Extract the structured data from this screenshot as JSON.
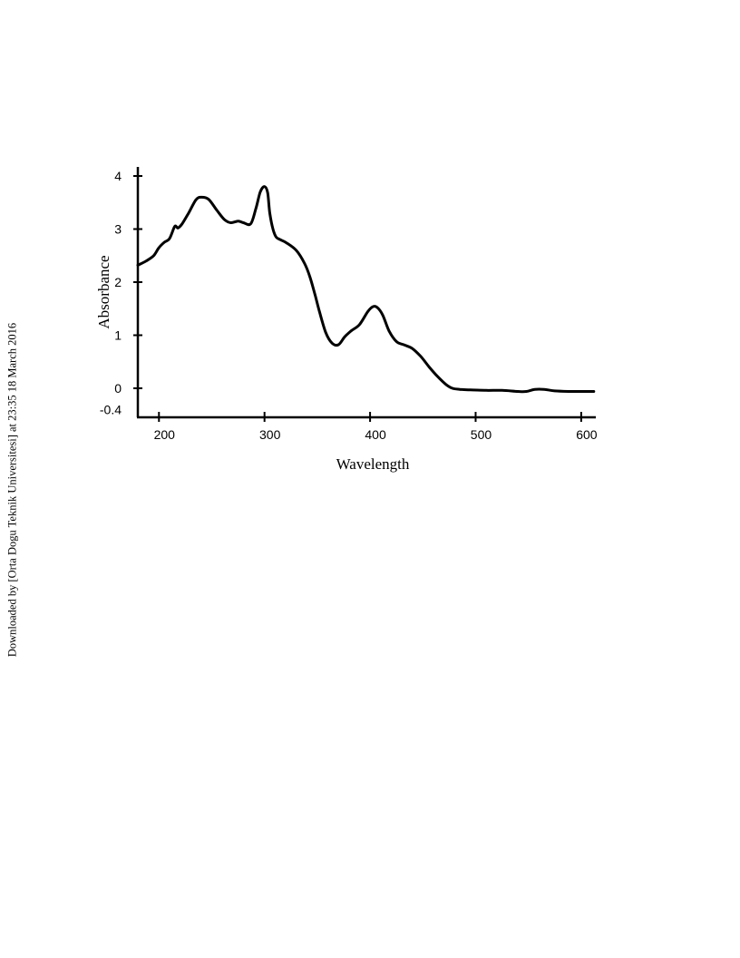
{
  "watermark": "Downloaded by [Orta Dogu Teknik Universitesi] at 23:35 18 March 2016",
  "chart_data": {
    "type": "line",
    "title": "",
    "xlabel": "Wavelength",
    "ylabel": "Absorbance",
    "xlim": [
      180,
      615
    ],
    "ylim": [
      -0.4,
      4.2
    ],
    "x_ticks": [
      200,
      300,
      400,
      500,
      600
    ],
    "x_tick_labels": [
      "200",
      "300",
      "400",
      "500",
      "600"
    ],
    "y_ticks": [
      -0.4,
      0,
      1,
      2,
      3,
      4
    ],
    "y_tick_labels": [
      "-0.4",
      "0",
      "1",
      "2",
      "3",
      "4"
    ],
    "grid": false,
    "line_color": "#000000",
    "series": [
      {
        "x": [
          180,
          188,
          195,
          200,
          205,
          210,
          215,
          218,
          222,
          228,
          235,
          240,
          247,
          255,
          262,
          268,
          275,
          280,
          287,
          292,
          296,
          300,
          303,
          305,
          308,
          311,
          315,
          320,
          330,
          338,
          343,
          348,
          352,
          358,
          364,
          370,
          376,
          382,
          390,
          398,
          403,
          407,
          412,
          418,
          425,
          432,
          440,
          448,
          456,
          464,
          472,
          478,
          485,
          495,
          510,
          525,
          540,
          548,
          556,
          565,
          575,
          590,
          600,
          612
        ],
        "values": [
          2.32,
          2.4,
          2.5,
          2.65,
          2.75,
          2.82,
          3.05,
          3.02,
          3.1,
          3.3,
          3.55,
          3.6,
          3.56,
          3.35,
          3.18,
          3.12,
          3.15,
          3.12,
          3.1,
          3.4,
          3.7,
          3.8,
          3.68,
          3.3,
          3.0,
          2.85,
          2.8,
          2.75,
          2.6,
          2.35,
          2.1,
          1.75,
          1.45,
          1.05,
          0.85,
          0.82,
          0.97,
          1.08,
          1.2,
          1.45,
          1.54,
          1.52,
          1.38,
          1.08,
          0.88,
          0.82,
          0.75,
          0.6,
          0.4,
          0.22,
          0.07,
          0.0,
          -0.02,
          -0.03,
          -0.04,
          -0.04,
          -0.06,
          -0.06,
          -0.02,
          -0.02,
          -0.05,
          -0.06,
          -0.06,
          -0.06
        ]
      }
    ]
  }
}
